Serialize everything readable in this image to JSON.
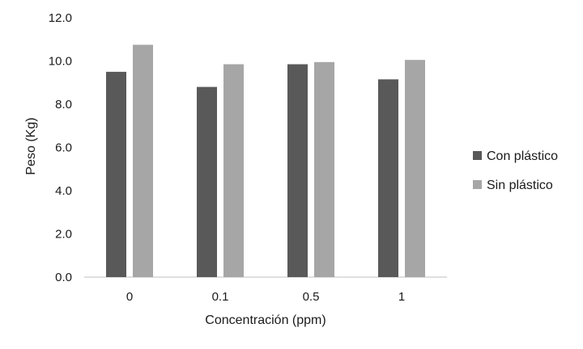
{
  "chart_data": {
    "type": "bar",
    "title": "",
    "xlabel": "Concentración (ppm)",
    "ylabel": "Peso (Kg)",
    "categories": [
      "0",
      "0.1",
      "0.5",
      "1"
    ],
    "series": [
      {
        "name": "Con plástico",
        "values": [
          9.5,
          8.8,
          9.85,
          9.15
        ],
        "color": "#595959"
      },
      {
        "name": "Sin plástico",
        "values": [
          10.75,
          9.85,
          9.95,
          10.05
        ],
        "color": "#a6a6a6"
      }
    ],
    "ylim": [
      0,
      12
    ],
    "yticks": [
      "0.0",
      "2.0",
      "4.0",
      "6.0",
      "8.0",
      "10.0",
      "12.0"
    ],
    "grid": false,
    "legend": "right"
  }
}
